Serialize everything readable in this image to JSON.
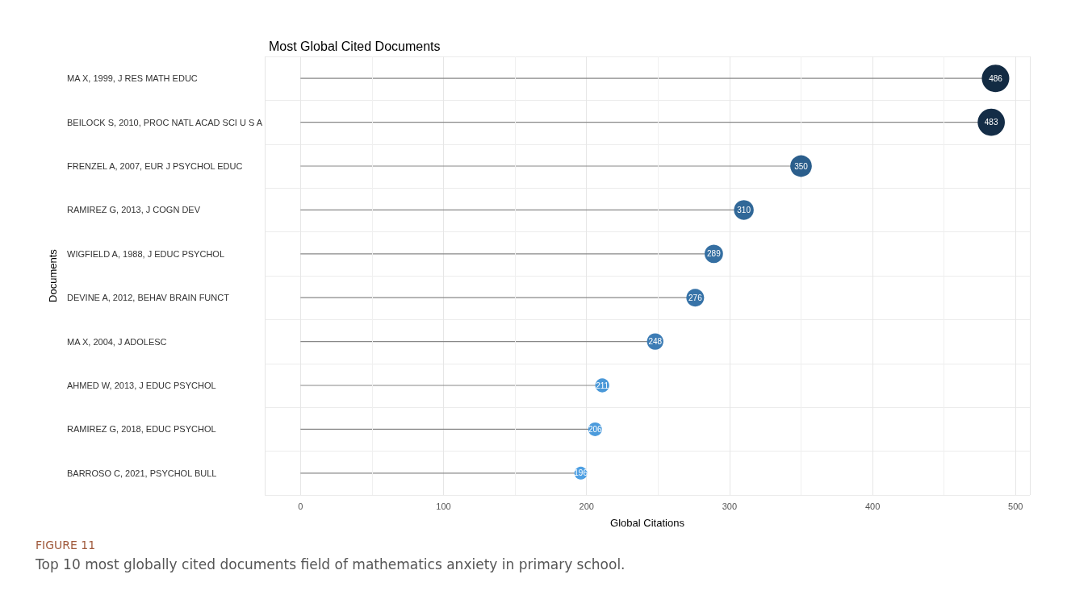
{
  "chart_data": {
    "type": "lollipop",
    "title": "Most Global Cited Documents",
    "xlabel": "Global Citations",
    "ylabel": "Documents",
    "orientation": "horizontal",
    "categories": [
      "MA X, 1999, J RES MATH EDUC",
      "BEILOCK S, 2010, PROC NATL ACAD SCI U S A",
      "FRENZEL A, 2007, EUR J PSYCHOL EDUC",
      "RAMIREZ G, 2013, J COGN DEV",
      "WIGFIELD A, 1988, J EDUC PSYCHOL",
      "DEVINE A, 2012, BEHAV BRAIN FUNCT",
      "MA X, 2004, J ADOLESC",
      "AHMED W, 2013, J EDUC PSYCHOL",
      "RAMIREZ G, 2018, EDUC PSYCHOL",
      "BARROSO C, 2021, PSYCHOL BULL"
    ],
    "values": [
      486,
      483,
      350,
      310,
      289,
      276,
      248,
      211,
      206,
      196
    ],
    "colors": [
      "#132b43",
      "#142d47",
      "#2b5e8c",
      "#316898",
      "#356fa2",
      "#3773a8",
      "#3c7cb5",
      "#4a98d8",
      "#4c9bdc",
      "#4fa0e3"
    ],
    "sizes": [
      1,
      0.98,
      0.62,
      0.52,
      0.45,
      0.42,
      0.36,
      0.26,
      0.25,
      0.22
    ],
    "data_labels": true,
    "xlim": [
      -25,
      510
    ],
    "xticks": [
      0,
      100,
      200,
      300,
      400,
      500
    ],
    "grid": true,
    "annotations": [
      "FIGURE 11",
      "Top 10 most globally cited documents field of mathematics anxiety in primary school."
    ]
  }
}
